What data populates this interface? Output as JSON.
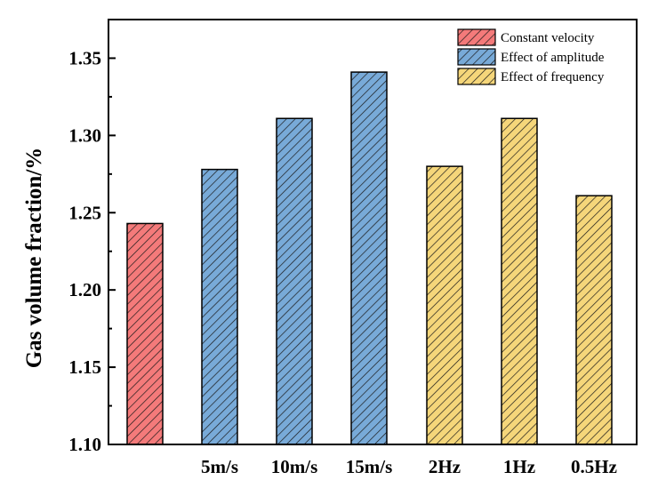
{
  "chart_data": {
    "type": "bar",
    "title": "",
    "xlabel": "",
    "ylabel": "Gas volume fraction/%",
    "ylim": [
      1.1,
      1.375
    ],
    "yticks": [
      "1.10",
      "1.15",
      "1.20",
      "1.25",
      "1.30",
      "1.35"
    ],
    "categories": [
      "",
      "5m/s",
      "10m/s",
      "15m/s",
      "2Hz",
      "1Hz",
      "0.5Hz"
    ],
    "values": [
      1.243,
      1.278,
      1.311,
      1.341,
      1.28,
      1.311,
      1.261
    ],
    "groups": [
      0,
      1,
      1,
      1,
      2,
      2,
      2
    ],
    "legend": [
      {
        "name": "Constant velocity",
        "color": "#f47a7a"
      },
      {
        "name": "Effect of amplitude",
        "color": "#78aad8"
      },
      {
        "name": "Effect of frequency",
        "color": "#f5d67a"
      }
    ],
    "legend_position": "top-right",
    "hatch": "diagonal",
    "grid": false
  }
}
